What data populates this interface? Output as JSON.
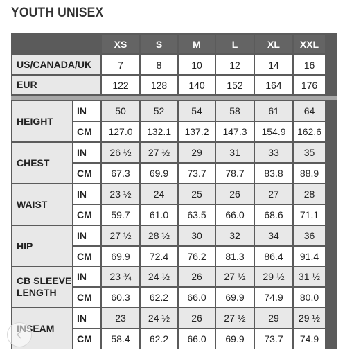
{
  "title": "YOUTH UNISEX",
  "sizes": [
    "XS",
    "S",
    "M",
    "L",
    "XL",
    "XXL"
  ],
  "top_rows": [
    {
      "label": "US/CANADA/UK",
      "values": [
        "7",
        "8",
        "10",
        "12",
        "14",
        "16"
      ]
    },
    {
      "label": "EUR",
      "values": [
        "122",
        "128",
        "140",
        "152",
        "164",
        "176"
      ]
    }
  ],
  "measurements": [
    {
      "label": "HEIGHT",
      "in": {
        "unit": "IN",
        "values": [
          "50",
          "52",
          "54",
          "58",
          "61",
          "64"
        ]
      },
      "cm": {
        "unit": "CM",
        "values": [
          "127.0",
          "132.1",
          "137.2",
          "147.3",
          "154.9",
          "162.6"
        ]
      }
    },
    {
      "label": "CHEST",
      "in": {
        "unit": "IN",
        "values": [
          "26 ½",
          "27 ½",
          "29",
          "31",
          "33",
          "35"
        ]
      },
      "cm": {
        "unit": "CM",
        "values": [
          "67.3",
          "69.9",
          "73.7",
          "78.7",
          "83.8",
          "88.9"
        ]
      }
    },
    {
      "label": "WAIST",
      "in": {
        "unit": "IN",
        "values": [
          "23 ½",
          "24",
          "25",
          "26",
          "27",
          "28"
        ]
      },
      "cm": {
        "unit": "CM",
        "values": [
          "59.7",
          "61.0",
          "63.5",
          "66.0",
          "68.6",
          "71.1"
        ]
      }
    },
    {
      "label": "HIP",
      "in": {
        "unit": "IN",
        "values": [
          "27 ½",
          "28 ½",
          "30",
          "32",
          "34",
          "36"
        ]
      },
      "cm": {
        "unit": "CM",
        "values": [
          "69.9",
          "72.4",
          "76.2",
          "81.3",
          "86.4",
          "91.4"
        ]
      }
    },
    {
      "label": "CB SLEEVE LENGTH",
      "in": {
        "unit": "IN",
        "values": [
          "23 ¾",
          "24 ½",
          "26",
          "27 ½",
          "29 ½",
          "31 ½"
        ]
      },
      "cm": {
        "unit": "CM",
        "values": [
          "60.3",
          "62.2",
          "66.0",
          "69.9",
          "74.9",
          "80.0"
        ]
      }
    },
    {
      "label": "INSEAM",
      "in": {
        "unit": "IN",
        "values": [
          "23",
          "24 ½",
          "26",
          "27 ½",
          "29",
          "29 ½"
        ]
      },
      "cm": {
        "unit": "CM",
        "values": [
          "58.4",
          "62.2",
          "66.0",
          "69.9",
          "73.7",
          "74.9"
        ]
      }
    }
  ],
  "icons": {
    "nav": "chevron-left-icon"
  },
  "colors": {
    "header_bg": "#646464",
    "frame": "#5b5b5b",
    "shaded": "#e8e8e8",
    "separator": "#a7a7a7"
  }
}
